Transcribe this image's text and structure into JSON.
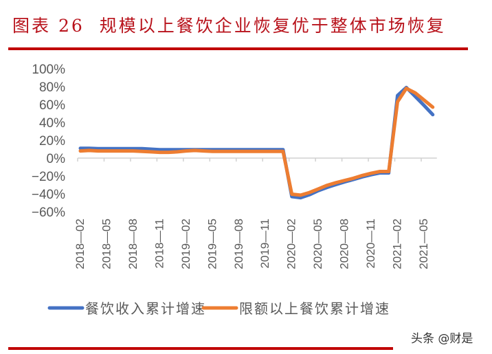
{
  "figure": {
    "label": "图表 26",
    "title": "规模以上餐饮企业恢复优于整体市场恢复",
    "accent_color": "#c00000",
    "title_color": "#b8121b"
  },
  "watermark": "头条 @财是",
  "chart_data": {
    "type": "line",
    "title": "规模以上餐饮企业恢复优于整体市场恢复",
    "xlabel": "",
    "ylabel": "",
    "ylim": [
      -0.6,
      1.0
    ],
    "yticks": [
      "100%",
      "80%",
      "60%",
      "40%",
      "20%",
      "0%",
      "-20%",
      "-40%",
      "-60%"
    ],
    "ytick_values": [
      100,
      80,
      60,
      40,
      20,
      0,
      -20,
      -40,
      -60
    ],
    "xtick_labels": [
      "2018-02",
      "2018-05",
      "2018-08",
      "2018-11",
      "2019-02",
      "2019-05",
      "2019-08",
      "2019-11",
      "2020-02",
      "2020-05",
      "2020-08",
      "2020-11",
      "2021-02",
      "2021-05"
    ],
    "x": [
      "2018-02",
      "2018-03",
      "2018-04",
      "2018-05",
      "2018-06",
      "2018-07",
      "2018-08",
      "2018-09",
      "2018-10",
      "2018-11",
      "2018-12",
      "2019-01",
      "2019-02",
      "2019-03",
      "2019-04",
      "2019-05",
      "2019-06",
      "2019-07",
      "2019-08",
      "2019-09",
      "2019-10",
      "2019-11",
      "2019-12",
      "2020-01",
      "2020-02",
      "2020-03",
      "2020-04",
      "2020-05",
      "2020-06",
      "2020-07",
      "2020-08",
      "2020-09",
      "2020-10",
      "2020-11",
      "2020-12",
      "2021-01",
      "2021-02",
      "2021-03",
      "2021-04",
      "2021-05",
      "2021-06"
    ],
    "grid": false,
    "legend_position": "bottom",
    "series": [
      {
        "name": "餐饮收入累计增速",
        "color": "#4472c4",
        "values": [
          11,
          11,
          10.5,
          10.5,
          10.5,
          10.5,
          10.5,
          10.5,
          10,
          9.5,
          9.5,
          9.5,
          9.5,
          9.5,
          9.5,
          9.5,
          9.5,
          9.5,
          9.5,
          9.5,
          9.5,
          9.5,
          9.5,
          9.5,
          -43.1,
          -44.3,
          -41,
          -36.5,
          -32.8,
          -29.6,
          -26.6,
          -23.9,
          -21,
          -18.6,
          -16.6,
          -16.6,
          70,
          79,
          69,
          59,
          48.6
        ]
      },
      {
        "name": "限额以上餐饮累计增速",
        "color": "#ed7d31",
        "values": [
          8,
          8.5,
          8,
          8,
          8,
          8,
          8,
          7.5,
          7,
          6.5,
          6.5,
          7,
          8,
          8.5,
          8,
          7.5,
          7.5,
          7.5,
          7.5,
          7.5,
          7.5,
          7.5,
          7.5,
          7.5,
          -40.4,
          -41.5,
          -38.5,
          -34.5,
          -30.5,
          -27.5,
          -25,
          -22.5,
          -19.5,
          -17,
          -15,
          -15,
          63,
          78,
          73,
          65,
          57
        ]
      }
    ]
  }
}
